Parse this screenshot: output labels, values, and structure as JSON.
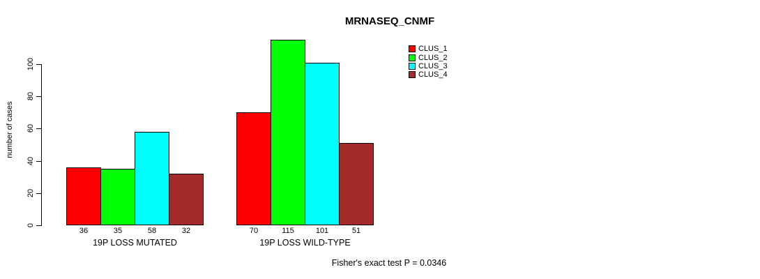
{
  "chart_data": {
    "type": "bar",
    "title": "MRNASEQ_CNMF",
    "ylabel": "number of cases",
    "xlabel": "",
    "yticks": [
      0,
      20,
      40,
      60,
      80,
      100
    ],
    "ylim": [
      0,
      115
    ],
    "grid": false,
    "legend_position": "top-right",
    "series": [
      {
        "name": "CLUS_1",
        "color": "#ff0000"
      },
      {
        "name": "CLUS_2",
        "color": "#00ff00"
      },
      {
        "name": "CLUS_3",
        "color": "#00ffff"
      },
      {
        "name": "CLUS_4",
        "color": "#a52a2a"
      }
    ],
    "groups": [
      {
        "label": "19P LOSS MUTATED",
        "values": [
          36,
          35,
          58,
          32
        ]
      },
      {
        "label": "19P LOSS WILD-TYPE",
        "values": [
          70,
          115,
          101,
          51
        ]
      }
    ],
    "annotation": "Fisher's exact test P = 0.0346"
  }
}
